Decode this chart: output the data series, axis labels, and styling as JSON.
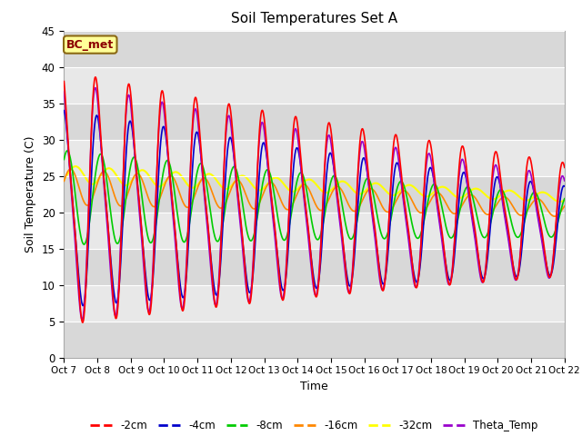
{
  "title": "Soil Temperatures Set A",
  "xlabel": "Time",
  "ylabel": "Soil Temperature (C)",
  "ylim": [
    0,
    45
  ],
  "xlim": [
    0,
    15
  ],
  "x_tick_labels": [
    "Oct 7",
    "Oct 8",
    "Oct 9",
    "Oct 10",
    "Oct 11",
    "Oct 12",
    "Oct 13",
    "Oct 14",
    "Oct 15",
    "Oct 16",
    "Oct 17",
    "Oct 18",
    "Oct 19",
    "Oct 20",
    "Oct 21",
    "Oct 22"
  ],
  "series": {
    "-2cm": {
      "color": "#FF0000",
      "linewidth": 1.2
    },
    "-4cm": {
      "color": "#0000CC",
      "linewidth": 1.2
    },
    "-8cm": {
      "color": "#00CC00",
      "linewidth": 1.2
    },
    "-16cm": {
      "color": "#FF8800",
      "linewidth": 1.2
    },
    "-32cm": {
      "color": "#FFFF00",
      "linewidth": 1.5
    },
    "Theta_Temp": {
      "color": "#9900CC",
      "linewidth": 1.2
    }
  },
  "plot_bg_light": "#E8E8E8",
  "plot_bg_dark": "#D8D8D8",
  "annotation_text": "BC_met",
  "annotation_bg": "#FFFF99",
  "annotation_border": "#8B6914"
}
